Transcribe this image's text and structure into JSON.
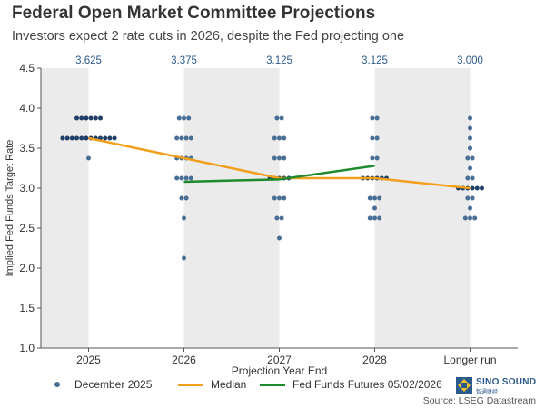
{
  "header": {
    "title": "Federal Open Market Committee Projections",
    "subtitle": "Investors expect 2 rate cuts in 2026, despite the Fed projecting one"
  },
  "chart_data": {
    "type": "scatter",
    "title": "Federal Open Market Committee Projections",
    "xlabel": "Projection Year End",
    "ylabel": "Implied Fed Funds Target Rate",
    "ylim": [
      1.0,
      4.5
    ],
    "yticks": [
      "1.0",
      "1.5",
      "2.0",
      "2.5",
      "3.0",
      "3.5",
      "4.0",
      "4.5"
    ],
    "categories": [
      "2025",
      "2026",
      "2027",
      "2028",
      "Longer run"
    ],
    "median_labels": [
      "3.625",
      "3.375",
      "3.125",
      "3.125",
      "3.000"
    ],
    "dots": [
      {
        "category": "2025",
        "points": [
          {
            "rate": 3.875,
            "count": 6
          },
          {
            "rate": 3.625,
            "count": 12
          },
          {
            "rate": 3.375,
            "count": 1
          }
        ]
      },
      {
        "category": "2026",
        "points": [
          {
            "rate": 3.875,
            "count": 3
          },
          {
            "rate": 3.625,
            "count": 4
          },
          {
            "rate": 3.375,
            "count": 4
          },
          {
            "rate": 3.125,
            "count": 4
          },
          {
            "rate": 2.875,
            "count": 2
          },
          {
            "rate": 2.625,
            "count": 1
          },
          {
            "rate": 2.125,
            "count": 1
          }
        ]
      },
      {
        "category": "2027",
        "points": [
          {
            "rate": 3.875,
            "count": 2
          },
          {
            "rate": 3.625,
            "count": 3
          },
          {
            "rate": 3.375,
            "count": 3
          },
          {
            "rate": 3.125,
            "count": 5
          },
          {
            "rate": 2.875,
            "count": 3
          },
          {
            "rate": 2.625,
            "count": 2
          },
          {
            "rate": 2.375,
            "count": 1
          }
        ]
      },
      {
        "category": "2028",
        "points": [
          {
            "rate": 3.875,
            "count": 2
          },
          {
            "rate": 3.625,
            "count": 2
          },
          {
            "rate": 3.375,
            "count": 2
          },
          {
            "rate": 3.125,
            "count": 6
          },
          {
            "rate": 2.875,
            "count": 3
          },
          {
            "rate": 2.75,
            "count": 1
          },
          {
            "rate": 2.625,
            "count": 3
          }
        ]
      },
      {
        "category": "Longer run",
        "points": [
          {
            "rate": 3.875,
            "count": 1
          },
          {
            "rate": 3.75,
            "count": 1
          },
          {
            "rate": 3.625,
            "count": 1
          },
          {
            "rate": 3.5,
            "count": 1
          },
          {
            "rate": 3.375,
            "count": 2
          },
          {
            "rate": 3.25,
            "count": 1
          },
          {
            "rate": 3.125,
            "count": 2
          },
          {
            "rate": 3.0,
            "count": 6
          },
          {
            "rate": 2.875,
            "count": 2
          },
          {
            "rate": 2.75,
            "count": 1
          },
          {
            "rate": 2.625,
            "count": 3
          }
        ]
      }
    ],
    "series": [
      {
        "name": "Median",
        "color": "#f2a01b",
        "x": [
          0,
          1,
          2,
          3,
          4
        ],
        "values": [
          3.625,
          3.375,
          3.125,
          3.125,
          3.0
        ]
      },
      {
        "name": "Fed Funds Futures 05/02/2026",
        "color": "#1e8a2e",
        "x": [
          1,
          2,
          3
        ],
        "values": [
          3.08,
          3.11,
          3.28
        ]
      }
    ],
    "legend_position": "bottom"
  },
  "legend": {
    "dots_label": "December 2025",
    "median_label": "Median",
    "futures_label": "Fed Funds Futures 05/02/2026",
    "dot_color": "#4a6f96",
    "median_color": "#f2a01b",
    "futures_color": "#1e8a2e"
  },
  "footer": {
    "source": "Source: LSEG Datastream",
    "logo_text": "SINO SOUND",
    "logo_sub": "智通财经"
  }
}
